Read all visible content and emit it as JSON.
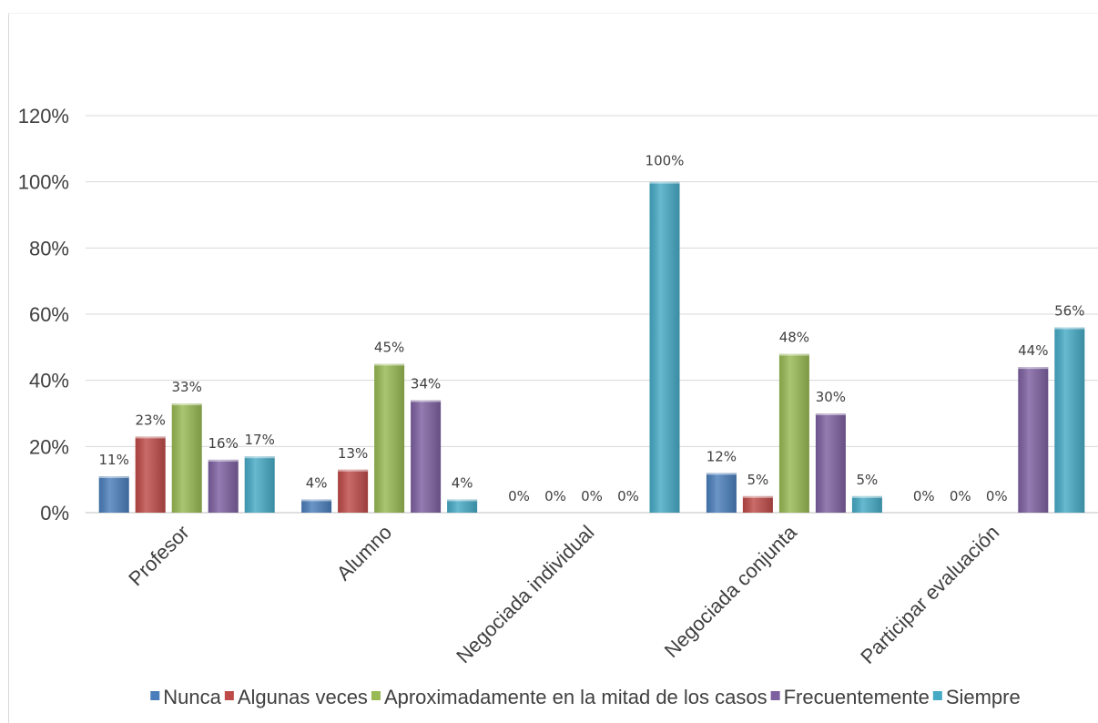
{
  "chart_data": {
    "type": "bar",
    "categories": [
      "Profesor",
      "Alumno",
      "Negociada individual",
      "Negociada conjunta",
      "Participar evaluación"
    ],
    "series": [
      {
        "name": "Nunca",
        "color": "#4a7ebb",
        "values": [
          11,
          4,
          0,
          12,
          0
        ],
        "labels": [
          "11%",
          "4%",
          "0%",
          "12%",
          "0%"
        ]
      },
      {
        "name": "Algunas veces",
        "color": "#be4b48",
        "values": [
          23,
          13,
          0,
          5,
          0
        ],
        "labels": [
          "23%",
          "13%",
          "0%",
          "5%",
          "0%"
        ]
      },
      {
        "name": "Aproximadamente en la mitad de los casos",
        "color": "#98b954",
        "values": [
          33,
          45,
          0,
          48,
          0
        ],
        "labels": [
          "33%",
          "45%",
          "0%",
          "48%",
          "0%"
        ]
      },
      {
        "name": "Frecuentemente",
        "color": "#7d60a0",
        "values": [
          16,
          34,
          0,
          30,
          44
        ],
        "labels": [
          "16%",
          "34%",
          "0%",
          "30%",
          "44%"
        ]
      },
      {
        "name": "Siempre",
        "color": "#46aac5",
        "values": [
          17,
          4,
          100,
          5,
          56
        ],
        "labels": [
          "17%",
          "4%",
          "",
          "5%",
          "56%"
        ]
      }
    ],
    "extra_labels": [
      {
        "category": 2,
        "series": 4,
        "text": "100%"
      }
    ],
    "yticks": [
      "0%",
      "20%",
      "40%",
      "60%",
      "80%",
      "100%",
      "120%"
    ],
    "ylim": [
      0,
      120
    ],
    "grid": true,
    "legend_position": "bottom",
    "title": "",
    "xlabel": "",
    "ylabel": ""
  }
}
